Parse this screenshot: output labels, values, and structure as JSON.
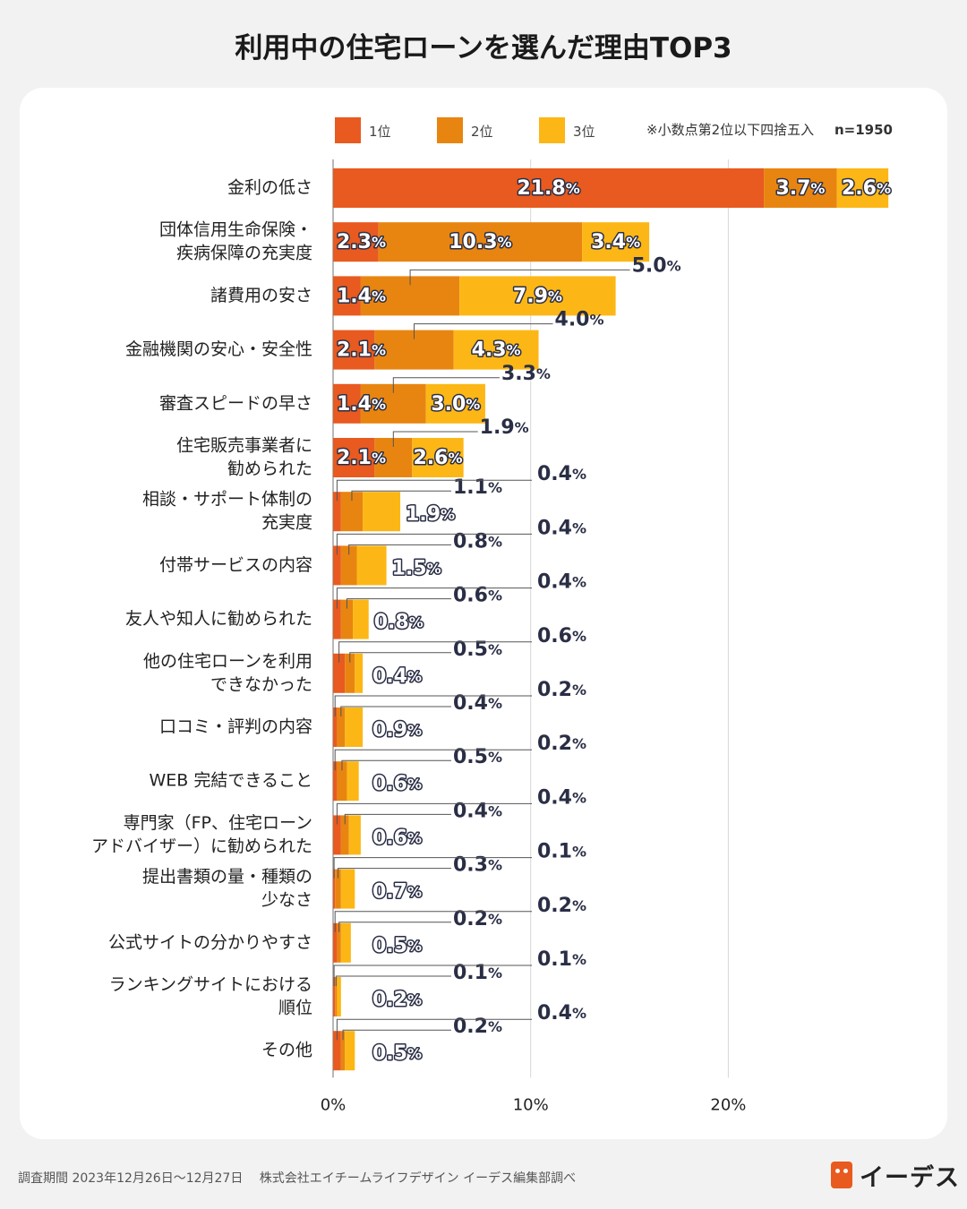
{
  "title": "利用中の住宅ローンを選んだ理由TOP3",
  "footer": "調査期間 2023年12月26日〜12月27日　 株式会社エイチームライフデザイン イーデス編集部調べ",
  "logo_text": "イーデス",
  "colors": {
    "rank1": "#e85a1f",
    "rank2": "#e88510",
    "rank3": "#fcb716",
    "text_dark": "#2a2e45"
  },
  "chart_data": {
    "type": "bar",
    "orientation": "horizontal",
    "stacked": true,
    "title": "利用中の住宅ローンを選んだ理由TOP3",
    "legend": [
      "1位",
      "2位",
      "3位"
    ],
    "note": "※小数点第2位以下四捨五入",
    "sample": "n=1950",
    "xlim": [
      0,
      28
    ],
    "xticks": [
      0,
      10,
      20
    ],
    "xtick_labels": [
      "0%",
      "10%",
      "20%"
    ],
    "categories": [
      "金利の低さ",
      "団体信用生命保険・\n疾病保障の充実度",
      "諸費用の安さ",
      "金融機関の安心・安全性",
      "審査スピードの早さ",
      "住宅販売事業者に\n勧められた",
      "相談・サポート体制の\n充実度",
      "付帯サービスの内容",
      "友人や知人に勧められた",
      "他の住宅ローンを利用\nできなかった",
      "口コミ・評判の内容",
      "WEB 完結できること",
      "専門家（FP、住宅ローン\nアドバイザー）に勧められた",
      "提出書類の量・種類の\n少なさ",
      "公式サイトの分かりやすさ",
      "ランキングサイトにおける\n順位",
      "その他"
    ],
    "series": [
      {
        "name": "1位",
        "values": [
          21.8,
          2.3,
          1.4,
          2.1,
          1.4,
          2.1,
          0.4,
          0.4,
          0.4,
          0.6,
          0.2,
          0.2,
          0.4,
          0.1,
          0.2,
          0.1,
          0.4
        ]
      },
      {
        "name": "2位",
        "values": [
          3.7,
          10.3,
          5.0,
          4.0,
          3.3,
          1.9,
          1.1,
          0.8,
          0.6,
          0.5,
          0.4,
          0.5,
          0.4,
          0.3,
          0.2,
          0.1,
          0.2
        ]
      },
      {
        "name": "3位",
        "values": [
          2.6,
          3.4,
          7.9,
          4.3,
          3.0,
          2.6,
          1.9,
          1.5,
          0.8,
          0.4,
          0.9,
          0.6,
          0.6,
          0.7,
          0.5,
          0.2,
          0.5
        ]
      }
    ]
  }
}
